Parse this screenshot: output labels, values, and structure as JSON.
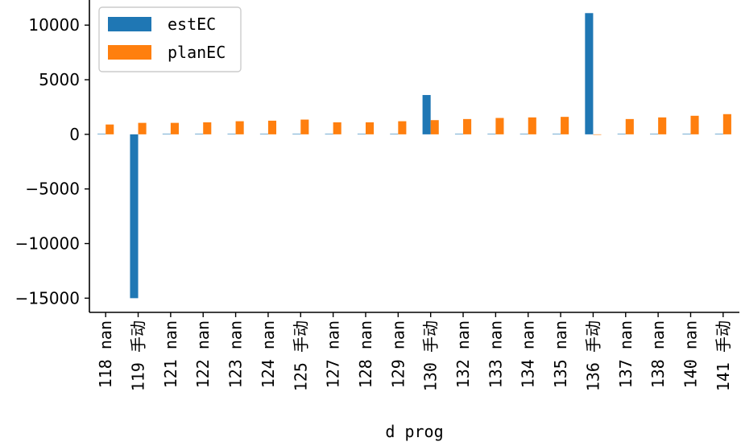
{
  "chart_data": {
    "type": "bar",
    "title": "",
    "xlabel": "d prog",
    "ylabel": "",
    "ylim": [
      -16300,
      12300
    ],
    "yticks": [
      10000,
      5000,
      0,
      -5000,
      -10000,
      -15000
    ],
    "ytick_labels": [
      "10000",
      "5000",
      "0",
      "−5000",
      "−10000",
      "−15000"
    ],
    "categories": [
      "118 nan",
      "119 手动",
      "121 nan",
      "122 nan",
      "123 nan",
      "124 nan",
      "125 手动",
      "127 nan",
      "128 nan",
      "129 nan",
      "130 手动",
      "132 nan",
      "133 nan",
      "134 nan",
      "135 nan",
      "136 手动",
      "137 nan",
      "138 nan",
      "140 nan",
      "141 手动"
    ],
    "series": [
      {
        "name": "estEC",
        "color": "#1f77b4",
        "values": [
          40,
          -15000,
          40,
          40,
          40,
          40,
          40,
          40,
          40,
          40,
          3600,
          40,
          40,
          40,
          40,
          11100,
          40,
          40,
          40,
          40
        ]
      },
      {
        "name": "planEC",
        "color": "#ff7f0e",
        "values": [
          900,
          1050,
          1050,
          1100,
          1200,
          1250,
          1350,
          1100,
          1100,
          1200,
          1300,
          1400,
          1500,
          1550,
          1600,
          0,
          1400,
          1550,
          1700,
          1850
        ]
      }
    ],
    "legend_position": "top-left",
    "grid": false
  }
}
